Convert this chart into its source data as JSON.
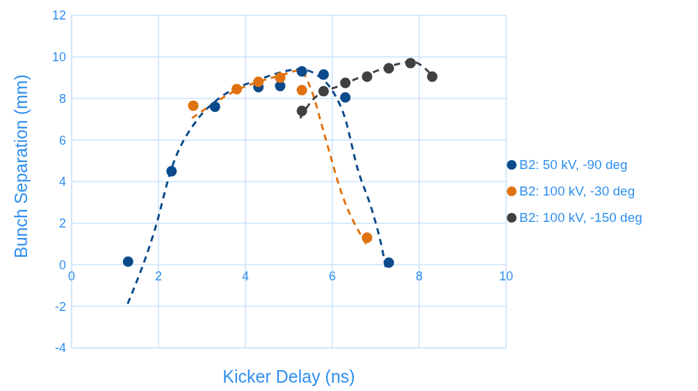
{
  "chart_data": {
    "type": "scatter",
    "xlabel": "Kicker Delay (ns)",
    "ylabel": "Bunch Separation (mm)",
    "xlim": [
      0,
      10
    ],
    "xticks": [
      0,
      2,
      4,
      6,
      8,
      10
    ],
    "ylim": [
      -4,
      12
    ],
    "yticks": [
      -4,
      -2,
      0,
      2,
      4,
      6,
      8,
      10,
      12
    ],
    "grid": true,
    "legend": "right",
    "marker": "circle",
    "series": [
      {
        "type": "line",
        "marker": "none",
        "color": "#0b4a8b",
        "line_style": "dashed",
        "x": [
          1.29,
          1.93,
          2.28,
          2.9,
          3.33,
          4.3,
          5.26,
          5.79,
          6.06,
          6.27,
          6.59,
          6.91,
          7.14,
          7.23
        ],
        "values": [
          -1.88,
          1.79,
          4.5,
          7.0,
          7.9,
          8.9,
          9.4,
          8.9,
          8.17,
          7.2,
          4.56,
          2.65,
          0.83,
          -0.13
        ]
      },
      {
        "type": "line",
        "marker": "none",
        "color": "#e0720f",
        "line_style": "dashed",
        "x": [
          2.77,
          3.3,
          3.8,
          4.3,
          4.8,
          5.26,
          5.5,
          5.82,
          6.22,
          6.78
        ],
        "values": [
          7.05,
          7.8,
          8.4,
          8.8,
          9.1,
          9.35,
          8.5,
          6.25,
          3.4,
          1.0
        ]
      },
      {
        "type": "line",
        "marker": "none",
        "color": "#404040",
        "line_style": "dashed",
        "x": [
          5.26,
          5.58,
          6.22,
          6.86,
          7.5,
          7.83,
          8.3
        ],
        "values": [
          7.05,
          8.0,
          8.65,
          9.2,
          9.65,
          9.77,
          9.1
        ]
      },
      {
        "name": "B2: 50 kV, -90 deg",
        "color": "#0b4a8b",
        "x": [
          1.3,
          2.3,
          3.3,
          4.3,
          4.8,
          5.3,
          5.8,
          6.3,
          7.3
        ],
        "values": [
          0.15,
          4.5,
          7.6,
          8.55,
          8.6,
          9.3,
          9.15,
          8.05,
          0.1
        ]
      },
      {
        "name": "B2: 100 kV, -30 deg",
        "color": "#e0720f",
        "x": [
          2.8,
          3.8,
          4.3,
          4.8,
          5.3,
          6.8
        ],
        "values": [
          7.65,
          8.45,
          8.8,
          9.0,
          8.4,
          1.3
        ]
      },
      {
        "name": "B2: 100 kV, -150 deg",
        "color": "#404040",
        "x": [
          5.3,
          5.8,
          6.3,
          6.8,
          7.3,
          7.8,
          8.3
        ],
        "values": [
          7.4,
          8.35,
          8.75,
          9.05,
          9.45,
          9.7,
          9.05
        ]
      }
    ]
  }
}
